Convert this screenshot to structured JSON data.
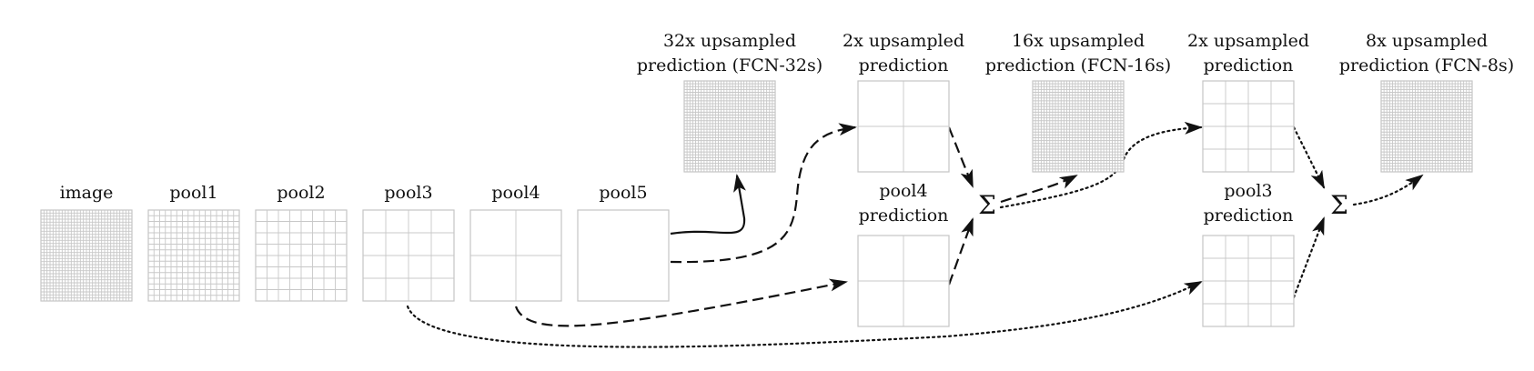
{
  "diagram": {
    "nodes": {
      "image": {
        "label": "image",
        "cells": 30
      },
      "pool1": {
        "label": "pool1",
        "cells": 16
      },
      "pool2": {
        "label": "pool2",
        "cells": 8
      },
      "pool3": {
        "label": "pool3",
        "cells": 4
      },
      "pool4": {
        "label": "pool4",
        "cells": 2
      },
      "pool5": {
        "label": "pool5",
        "cells": 1
      },
      "fcn32": {
        "label_line1": "32x upsampled",
        "label_line2": "prediction (FCN-32s)",
        "cells": 32
      },
      "up2_a": {
        "label_line1": "2x upsampled",
        "label_line2": "prediction",
        "cells": 2
      },
      "pool4_pred": {
        "label_line1": "pool4",
        "label_line2": "prediction",
        "cells": 2
      },
      "fcn16": {
        "label_line1": "16x upsampled",
        "label_line2": "prediction (FCN-16s)",
        "cells": 32
      },
      "up2_b": {
        "label_line1": "2x upsampled",
        "label_line2": "prediction",
        "cells": 4
      },
      "pool3_pred": {
        "label_line1": "pool3",
        "label_line2": "prediction",
        "cells": 4
      },
      "fcn8": {
        "label_line1": "8x upsampled",
        "label_line2": "prediction (FCN-8s)",
        "cells": 32
      }
    },
    "sum_symbol": "Σ",
    "connections": [
      {
        "from": "pool5",
        "to": "fcn32",
        "style": "solid"
      },
      {
        "from": "pool5",
        "to": "up2_a",
        "style": "dashed"
      },
      {
        "from": "pool4",
        "to": "pool4_pred",
        "style": "dashed"
      },
      {
        "from": "up2_a",
        "to": "sum1",
        "style": "dashed"
      },
      {
        "from": "pool4_pred",
        "to": "sum1",
        "style": "dashed"
      },
      {
        "from": "sum1",
        "to": "fcn16",
        "style": "dashed"
      },
      {
        "from": "sum1",
        "to": "up2_b",
        "style": "dotted"
      },
      {
        "from": "pool3",
        "to": "pool3_pred",
        "style": "dotted"
      },
      {
        "from": "up2_b",
        "to": "sum2",
        "style": "dotted"
      },
      {
        "from": "pool3_pred",
        "to": "sum2",
        "style": "dotted"
      },
      {
        "from": "sum2",
        "to": "fcn8",
        "style": "dotted"
      }
    ]
  }
}
